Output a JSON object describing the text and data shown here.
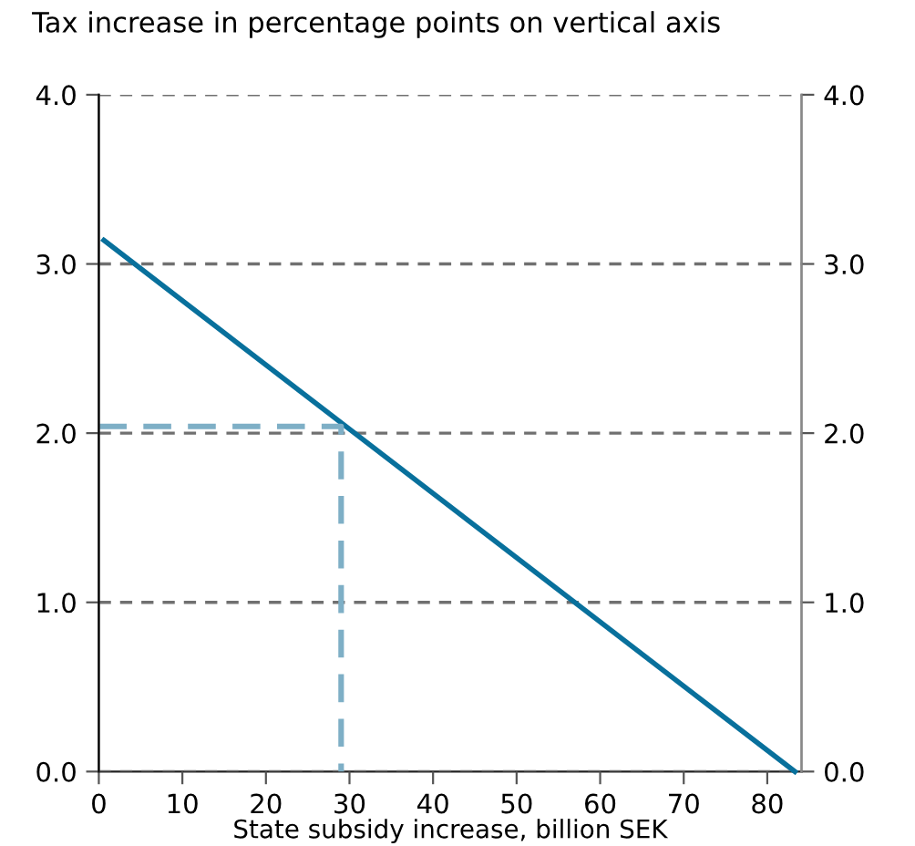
{
  "chart_data": {
    "type": "line",
    "title": "Tax increase in percentage points on vertical axis",
    "xlabel": "State subsidy increase, billion SEK",
    "series": [
      {
        "x": [
          0.6,
          83.3
        ],
        "values": [
          3.14,
          0.0
        ],
        "color": "#08709c",
        "line_style": "solid"
      },
      {
        "x": [
          0,
          29,
          29
        ],
        "values": [
          2.04,
          2.04,
          0.0
        ],
        "color": "#7eafc6",
        "line_style": "dashed"
      }
    ],
    "xlim": [
      0,
      84.1
    ],
    "xticks": [
      0,
      10,
      20,
      30,
      40,
      50,
      60,
      70,
      80
    ],
    "ylim": [
      0,
      4
    ],
    "yticks": [
      {
        "value": 0,
        "label": "0.0"
      },
      {
        "value": 1,
        "label": "1.0"
      },
      {
        "value": 2,
        "label": "2.0"
      },
      {
        "value": 3,
        "label": "3.0"
      },
      {
        "value": 4,
        "label": "4.0"
      }
    ],
    "y2lim": [
      0,
      4
    ],
    "y2ticks": [
      {
        "value": 0,
        "label": "0.0"
      },
      {
        "value": 1,
        "label": "1.0"
      },
      {
        "value": 2,
        "label": "2.0"
      },
      {
        "value": 3,
        "label": "3.0"
      },
      {
        "value": 4,
        "label": "4.0"
      }
    ],
    "grid": "y",
    "marker": "none"
  }
}
